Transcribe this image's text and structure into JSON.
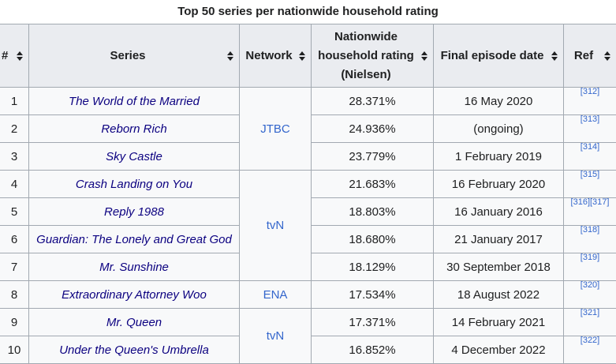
{
  "caption": "Top 50 series per nationwide household rating",
  "headers": {
    "rank": "#",
    "series": "Series",
    "network": "Network",
    "rating_line1": "Nationwide",
    "rating_line2": "household rating",
    "rating_line3": "(Nielsen)",
    "final": "Final episode date",
    "ref": "Ref"
  },
  "rows": [
    {
      "rank": "1",
      "series": "The World of the Married",
      "rating": "28.371%",
      "final": "16 May 2020",
      "ref": "[312]"
    },
    {
      "rank": "2",
      "series": "Reborn Rich",
      "rating": "24.936%",
      "final": "(ongoing)",
      "ref": "[313]"
    },
    {
      "rank": "3",
      "series": "Sky Castle",
      "rating": "23.779%",
      "final": "1 February 2019",
      "ref": "[314]"
    },
    {
      "rank": "4",
      "series": "Crash Landing on You",
      "rating": "21.683%",
      "final": "16 February 2020",
      "ref": "[315]"
    },
    {
      "rank": "5",
      "series": "Reply 1988",
      "rating": "18.803%",
      "final": "16 January 2016",
      "ref": "[316]",
      "ref2": "[317]"
    },
    {
      "rank": "6",
      "series": "Guardian: The Lonely and Great God",
      "rating": "18.680%",
      "final": "21 January 2017",
      "ref": "[318]"
    },
    {
      "rank": "7",
      "series": "Mr. Sunshine",
      "rating": "18.129%",
      "final": "30 September 2018",
      "ref": "[319]"
    },
    {
      "rank": "8",
      "series": "Extraordinary Attorney Woo",
      "rating": "17.534%",
      "final": "18 August 2022",
      "ref": "[320]"
    },
    {
      "rank": "9",
      "series": "Mr. Queen",
      "rating": "17.371%",
      "final": "14 February 2021",
      "ref": "[321]"
    },
    {
      "rank": "10",
      "series": "Under the Queen's Umbrella",
      "rating": "16.852%",
      "final": "4 December 2022",
      "ref": "[322]"
    }
  ],
  "networks": {
    "jtbc": "JTBC",
    "tvn1": "tvN",
    "ena": "ENA",
    "tvn2": "tvN"
  }
}
